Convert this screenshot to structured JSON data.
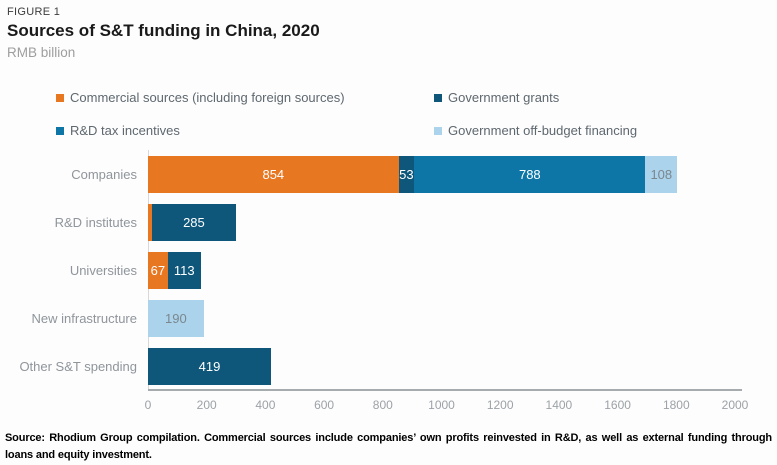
{
  "header": {
    "figure_label": "FIGURE 1",
    "title": "Sources of S&T funding in China, 2020",
    "subtitle": "RMB billion"
  },
  "colors": {
    "commercial": {
      "fill": "#E87722",
      "text": "#FFFFFF"
    },
    "grants": {
      "fill": "#0F577A",
      "text": "#FFFFFF"
    },
    "tax": {
      "fill": "#0E76A6",
      "text": "#FFFFFF"
    },
    "offbudget": {
      "fill": "#ABD4EC",
      "text": "#7B868D"
    }
  },
  "legend": {
    "items": [
      {
        "label": "Commercial sources (including foreign sources)",
        "color_key": "commercial"
      },
      {
        "label": "Government grants",
        "color_key": "grants"
      },
      {
        "label": "R&D tax incentives",
        "color_key": "tax"
      },
      {
        "label": "Government off-budget financing",
        "color_key": "offbudget"
      }
    ]
  },
  "chart_data": {
    "type": "bar",
    "orientation": "horizontal",
    "stacked": true,
    "title": "Sources of S&T funding in China, 2020",
    "units": "RMB billion",
    "xlim": [
      0,
      2000
    ],
    "xticks": [
      0,
      200,
      400,
      600,
      800,
      1000,
      1200,
      1400,
      1600,
      1800,
      2000
    ],
    "xmax": 2000,
    "grid": false,
    "legend_position": "top",
    "categories": [
      "Companies",
      "R&D institutes",
      "Universities",
      "New infrastructure",
      "Other S&T spending"
    ],
    "rows": [
      {
        "category": "Companies",
        "segments": [
          {
            "series": "commercial",
            "value": 854,
            "label": "854"
          },
          {
            "series": "grants",
            "value": 53,
            "label": "53"
          },
          {
            "series": "tax",
            "value": 788,
            "label": "788"
          },
          {
            "series": "offbudget",
            "value": 108,
            "label": "108"
          }
        ]
      },
      {
        "category": "R&D institutes",
        "segments": [
          {
            "series": "commercial",
            "value": 14,
            "label": ""
          },
          {
            "series": "grants",
            "value": 285,
            "label": "285"
          }
        ]
      },
      {
        "category": "Universities",
        "segments": [
          {
            "series": "commercial",
            "value": 67,
            "label": "67"
          },
          {
            "series": "grants",
            "value": 113,
            "label": "113"
          }
        ]
      },
      {
        "category": "New infrastructure",
        "segments": [
          {
            "series": "offbudget",
            "value": 190,
            "label": "190"
          }
        ]
      },
      {
        "category": "Other S&T spending",
        "segments": [
          {
            "series": "grants",
            "value": 419,
            "label": "419"
          }
        ]
      }
    ]
  },
  "footer": {
    "text": "Source: Rhodium Group compilation. Commercial sources include companies’ own profits reinvested in R&D, as well as external funding through loans and equity investment."
  }
}
